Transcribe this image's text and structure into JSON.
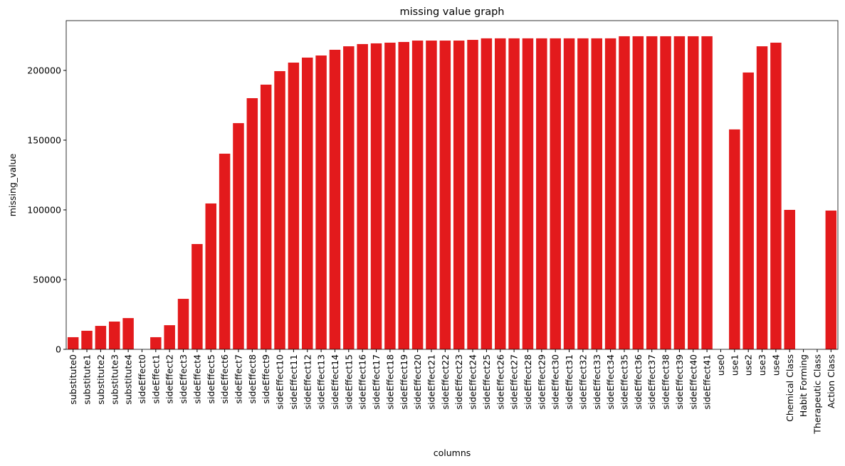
{
  "chart_data": {
    "type": "bar",
    "title": "missing value graph",
    "x_label": "columns",
    "y_label": "missing_value",
    "categories": [
      "substitute0",
      "substitute1",
      "substitute2",
      "substitute3",
      "substitute4",
      "sideEffect0",
      "sideEffect1",
      "sideEffect2",
      "sideEffect3",
      "sideEffect4",
      "sideEffect5",
      "sideEffect6",
      "sideEffect7",
      "sideEffect8",
      "sideEffect9",
      "sideEffect10",
      "sideEffect11",
      "sideEffect12",
      "sideEffect13",
      "sideEffect14",
      "sideEffect15",
      "sideEffect16",
      "sideEffect17",
      "sideEffect18",
      "sideEffect19",
      "sideEffect20",
      "sideEffect21",
      "sideEffect22",
      "sideEffect23",
      "sideEffect24",
      "sideEffect25",
      "sideEffect26",
      "sideEffect27",
      "sideEffect28",
      "sideEffect29",
      "sideEffect30",
      "sideEffect31",
      "sideEffect32",
      "sideEffect33",
      "sideEffect34",
      "sideEffect35",
      "sideEffect36",
      "sideEffect37",
      "sideEffect38",
      "sideEffect39",
      "sideEffect40",
      "sideEffect41",
      "use0",
      "use1",
      "use2",
      "use3",
      "use4",
      "Chemical Class",
      "Habit Forming",
      "Therapeutic Class",
      "Action Class"
    ],
    "values": [
      8700,
      13300,
      16800,
      19900,
      22400,
      0,
      8700,
      17300,
      36200,
      75500,
      104600,
      140300,
      162200,
      180100,
      189800,
      199500,
      205600,
      209200,
      210700,
      214800,
      217300,
      218900,
      219400,
      219900,
      220400,
      221400,
      221400,
      221400,
      221400,
      221900,
      223000,
      223000,
      223000,
      223000,
      223000,
      223000,
      223000,
      223000,
      223000,
      223000,
      224500,
      224500,
      224500,
      224500,
      224500,
      224500,
      224500,
      0,
      157700,
      198500,
      217300,
      219900,
      100000,
      0,
      0,
      99500
    ],
    "color": "#e31a1c",
    "ylim": [
      0,
      235700
    ],
    "yticks": [
      0,
      50000,
      100000,
      150000,
      200000
    ]
  }
}
